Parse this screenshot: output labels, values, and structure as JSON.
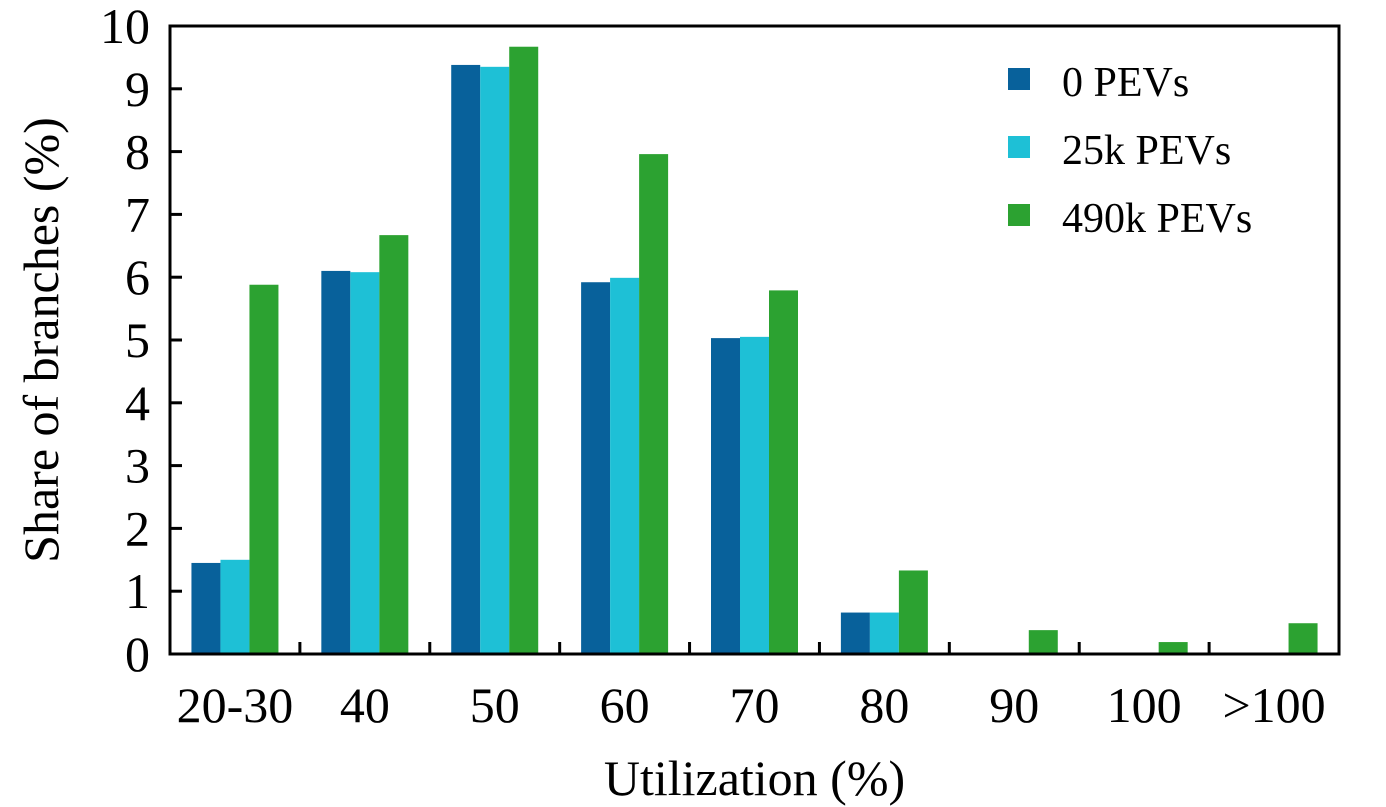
{
  "chart_data": {
    "type": "bar",
    "title": "",
    "xlabel": "Utilization (%)",
    "ylabel": "Share of branches (%)",
    "categories": [
      "20-30",
      "40",
      "50",
      "60",
      "70",
      "80",
      "90",
      "100",
      ">100"
    ],
    "ylim": [
      0,
      10
    ],
    "yticks": [
      0,
      1,
      2,
      3,
      4,
      5,
      6,
      7,
      8,
      9,
      10
    ],
    "grid": false,
    "legend_position": "top-right",
    "series": [
      {
        "name": "0 PEVs",
        "color": "#08619b",
        "values": [
          1.45,
          6.1,
          9.38,
          5.92,
          5.03,
          0.66,
          0,
          0,
          0
        ]
      },
      {
        "name": "25k PEVs",
        "color": "#1ec0d6",
        "values": [
          1.5,
          6.08,
          9.35,
          5.99,
          5.05,
          0.66,
          0,
          0,
          0
        ]
      },
      {
        "name": "490k PEVs",
        "color": "#2ca231",
        "values": [
          5.88,
          6.67,
          9.67,
          7.96,
          5.79,
          1.33,
          0.38,
          0.19,
          0.49
        ]
      }
    ]
  }
}
